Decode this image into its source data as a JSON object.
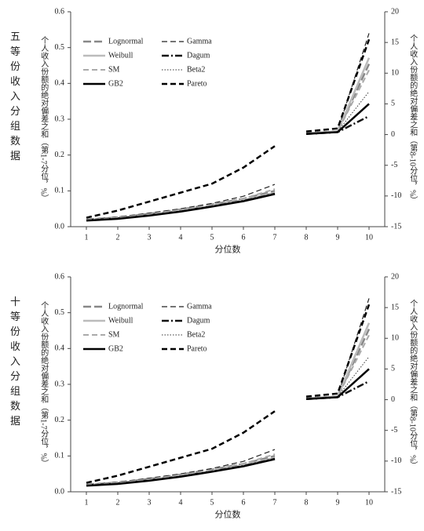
{
  "chart_data": [
    {
      "type": "line",
      "panel_label": "五等份收入分组数据",
      "xlabel": "分位数",
      "ylabel": "个人收入份额的绝对偏差之和（第1-7分位，%）",
      "y2label": "个人收入份额的绝对偏差之和（第8-10分位，%）",
      "categories": [
        1,
        2,
        3,
        4,
        5,
        6,
        7,
        8,
        9,
        10
      ],
      "ylim": [
        0,
        0.6
      ],
      "yticks": [
        {
          "value": 0,
          "label": "0.0"
        },
        0.1,
        0.2,
        0.3,
        0.4,
        0.5,
        0.6
      ],
      "y2lim": [
        -15,
        20
      ],
      "y2ticks": [
        -15,
        -10,
        -5,
        0,
        5,
        10,
        15,
        20
      ],
      "series": [
        {
          "name": "Lognormal",
          "color": "#888888",
          "dash": "longdash",
          "width": 2.5,
          "values": [
            0.02,
            0.026,
            0.036,
            0.048,
            0.062,
            0.078,
            0.1,
            null,
            null,
            null
          ],
          "y2_values": [
            null,
            null,
            null,
            null,
            null,
            null,
            null,
            0.2,
            0.5,
            11.5
          ]
        },
        {
          "name": "Gamma",
          "color": "#222222",
          "dash": "dash",
          "width": 1.2,
          "values": [
            0.02,
            0.027,
            0.038,
            0.05,
            0.065,
            0.085,
            0.118,
            null,
            null,
            null
          ],
          "y2_values": [
            null,
            null,
            null,
            null,
            null,
            null,
            null,
            0.3,
            0.6,
            16.5
          ]
        },
        {
          "name": "Weibull",
          "color": "#bbbbbb",
          "dash": "solid",
          "width": 2.5,
          "values": [
            0.018,
            0.024,
            0.033,
            0.045,
            0.058,
            0.074,
            0.095,
            null,
            null,
            null
          ],
          "y2_values": [
            null,
            null,
            null,
            null,
            null,
            null,
            null,
            0.2,
            0.5,
            12.5
          ]
        },
        {
          "name": "Dagum",
          "color": "#111111",
          "dash": "dashdot",
          "width": 2.5,
          "values": [
            0.018,
            0.023,
            0.032,
            0.043,
            0.057,
            0.072,
            0.092,
            null,
            null,
            null
          ],
          "y2_values": [
            null,
            null,
            null,
            null,
            null,
            null,
            null,
            0.1,
            0.4,
            3
          ]
        },
        {
          "name": "SM",
          "color": "#aaaaaa",
          "dash": "dash",
          "width": 2,
          "values": [
            0.019,
            0.025,
            0.035,
            0.047,
            0.061,
            0.078,
            0.105,
            null,
            null,
            null
          ],
          "y2_values": [
            null,
            null,
            null,
            null,
            null,
            null,
            null,
            0.2,
            0.5,
            10.5
          ]
        },
        {
          "name": "Beta2",
          "color": "#333333",
          "dash": "dot",
          "width": 1,
          "values": [
            0.018,
            0.023,
            0.032,
            0.044,
            0.057,
            0.073,
            0.093,
            null,
            null,
            null
          ],
          "y2_values": [
            null,
            null,
            null,
            null,
            null,
            null,
            null,
            0.2,
            0.5,
            7
          ]
        },
        {
          "name": "GB2",
          "color": "#000000",
          "dash": "solid",
          "width": 2.5,
          "values": [
            0.017,
            0.022,
            0.031,
            0.042,
            0.056,
            0.071,
            0.091,
            null,
            null,
            null
          ],
          "y2_values": [
            null,
            null,
            null,
            null,
            null,
            null,
            null,
            0.1,
            0.4,
            5
          ]
        },
        {
          "name": "Pareto",
          "color": "#000000",
          "dash": "dash",
          "width": 2.5,
          "values": [
            0.025,
            0.045,
            0.07,
            0.095,
            0.12,
            0.165,
            0.225,
            null,
            null,
            null
          ],
          "y2_values": [
            null,
            null,
            null,
            null,
            null,
            null,
            null,
            0.5,
            1,
            15.5
          ]
        }
      ]
    },
    {
      "type": "line",
      "panel_label": "十等份收入分组数据",
      "xlabel": "分位数",
      "ylabel": "个人收入份额的绝对偏差之和（第1-7分位，%）",
      "y2label": "个人收入份额的绝对偏差之和（第8-10分位，%）",
      "categories": [
        1,
        2,
        3,
        4,
        5,
        6,
        7,
        8,
        9,
        10
      ],
      "ylim": [
        0,
        0.6
      ],
      "yticks": [
        {
          "value": 0,
          "label": "0.0"
        },
        0.1,
        0.2,
        0.3,
        0.4,
        0.5,
        0.6
      ],
      "y2lim": [
        -15,
        20
      ],
      "y2ticks": [
        -15,
        -10,
        -5,
        0,
        5,
        10,
        15,
        20
      ],
      "series": [
        {
          "name": "Lognormal",
          "color": "#888888",
          "dash": "longdash",
          "width": 2.5,
          "values": [
            0.02,
            0.026,
            0.036,
            0.048,
            0.062,
            0.078,
            0.1,
            null,
            null,
            null
          ],
          "y2_values": [
            null,
            null,
            null,
            null,
            null,
            null,
            null,
            0.2,
            0.5,
            11.5
          ]
        },
        {
          "name": "Gamma",
          "color": "#222222",
          "dash": "dash",
          "width": 1.2,
          "values": [
            0.02,
            0.027,
            0.038,
            0.05,
            0.065,
            0.085,
            0.118,
            null,
            null,
            null
          ],
          "y2_values": [
            null,
            null,
            null,
            null,
            null,
            null,
            null,
            0.3,
            0.6,
            16.5
          ]
        },
        {
          "name": "Weibull",
          "color": "#bbbbbb",
          "dash": "solid",
          "width": 2.5,
          "values": [
            0.018,
            0.024,
            0.033,
            0.045,
            0.058,
            0.074,
            0.095,
            null,
            null,
            null
          ],
          "y2_values": [
            null,
            null,
            null,
            null,
            null,
            null,
            null,
            0.2,
            0.5,
            12.5
          ]
        },
        {
          "name": "Dagum",
          "color": "#111111",
          "dash": "dashdot",
          "width": 2.5,
          "values": [
            0.018,
            0.023,
            0.032,
            0.043,
            0.057,
            0.072,
            0.092,
            null,
            null,
            null
          ],
          "y2_values": [
            null,
            null,
            null,
            null,
            null,
            null,
            null,
            0.1,
            0.4,
            3
          ]
        },
        {
          "name": "SM",
          "color": "#aaaaaa",
          "dash": "dash",
          "width": 2,
          "values": [
            0.019,
            0.025,
            0.035,
            0.047,
            0.061,
            0.078,
            0.105,
            null,
            null,
            null
          ],
          "y2_values": [
            null,
            null,
            null,
            null,
            null,
            null,
            null,
            0.2,
            0.5,
            10.5
          ]
        },
        {
          "name": "Beta2",
          "color": "#333333",
          "dash": "dot",
          "width": 1,
          "values": [
            0.018,
            0.023,
            0.032,
            0.044,
            0.057,
            0.073,
            0.093,
            null,
            null,
            null
          ],
          "y2_values": [
            null,
            null,
            null,
            null,
            null,
            null,
            null,
            0.2,
            0.5,
            7
          ]
        },
        {
          "name": "GB2",
          "color": "#000000",
          "dash": "solid",
          "width": 2.5,
          "values": [
            0.017,
            0.022,
            0.031,
            0.042,
            0.056,
            0.071,
            0.091,
            null,
            null,
            null
          ],
          "y2_values": [
            null,
            null,
            null,
            null,
            null,
            null,
            null,
            0.1,
            0.4,
            5
          ]
        },
        {
          "name": "Pareto",
          "color": "#000000",
          "dash": "dash",
          "width": 2.5,
          "values": [
            0.025,
            0.045,
            0.07,
            0.095,
            0.12,
            0.165,
            0.225,
            null,
            null,
            null
          ],
          "y2_values": [
            null,
            null,
            null,
            null,
            null,
            null,
            null,
            0.5,
            1,
            15.5
          ]
        }
      ]
    }
  ]
}
